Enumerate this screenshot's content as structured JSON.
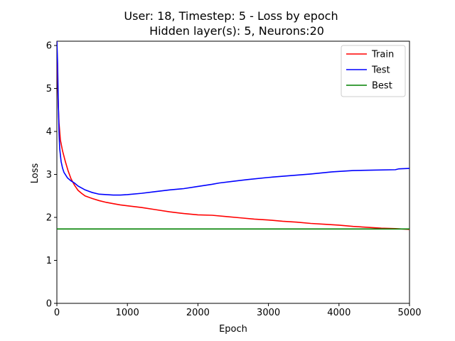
{
  "chart_data": {
    "type": "line",
    "title": "User: 18, Timestep: 5 - Loss by epoch",
    "subtitle": "Hidden layer(s): 5, Neurons:20",
    "xlabel": "Epoch",
    "ylabel": "Loss",
    "xlim": [
      0,
      5000
    ],
    "ylim": [
      0,
      6.1
    ],
    "xticks": [
      0,
      1000,
      2000,
      3000,
      4000,
      5000
    ],
    "yticks": [
      0,
      1,
      2,
      3,
      4,
      5,
      6
    ],
    "grid": false,
    "legend_position": "top-right",
    "series": [
      {
        "name": "Train",
        "color": "#ff0000",
        "x": [
          0,
          10,
          20,
          30,
          50,
          80,
          120,
          160,
          200,
          250,
          300,
          350,
          400,
          500,
          600,
          700,
          800,
          900,
          1000,
          1200,
          1400,
          1600,
          1800,
          2000,
          2200,
          2400,
          2600,
          2800,
          3000,
          3200,
          3400,
          3600,
          3800,
          4000,
          4200,
          4400,
          4600,
          4800,
          5000
        ],
        "y": [
          6.1,
          5.2,
          4.6,
          4.2,
          3.8,
          3.55,
          3.3,
          3.08,
          2.9,
          2.75,
          2.63,
          2.56,
          2.5,
          2.44,
          2.39,
          2.35,
          2.32,
          2.29,
          2.27,
          2.23,
          2.18,
          2.13,
          2.09,
          2.06,
          2.05,
          2.02,
          1.99,
          1.96,
          1.94,
          1.91,
          1.89,
          1.86,
          1.84,
          1.82,
          1.79,
          1.77,
          1.75,
          1.74,
          1.72
        ]
      },
      {
        "name": "Test",
        "color": "#0000ff",
        "x": [
          0,
          10,
          20,
          30,
          40,
          60,
          80,
          100,
          150,
          200,
          250,
          300,
          400,
          500,
          600,
          700,
          800,
          900,
          1000,
          1200,
          1400,
          1600,
          1800,
          2000,
          2200,
          2300,
          2500,
          2700,
          3000,
          3300,
          3600,
          3900,
          4000,
          4200,
          4500,
          4800,
          4850,
          5000
        ],
        "y": [
          6.1,
          5.6,
          4.7,
          4.0,
          3.6,
          3.3,
          3.15,
          3.05,
          2.92,
          2.85,
          2.8,
          2.73,
          2.64,
          2.58,
          2.54,
          2.53,
          2.52,
          2.52,
          2.53,
          2.56,
          2.6,
          2.64,
          2.67,
          2.72,
          2.77,
          2.8,
          2.84,
          2.88,
          2.93,
          2.97,
          3.01,
          3.06,
          3.07,
          3.09,
          3.1,
          3.11,
          3.13,
          3.14
        ]
      },
      {
        "name": "Best",
        "color": "#008000",
        "x": [
          0,
          5000
        ],
        "y": [
          1.73,
          1.73
        ]
      }
    ]
  }
}
